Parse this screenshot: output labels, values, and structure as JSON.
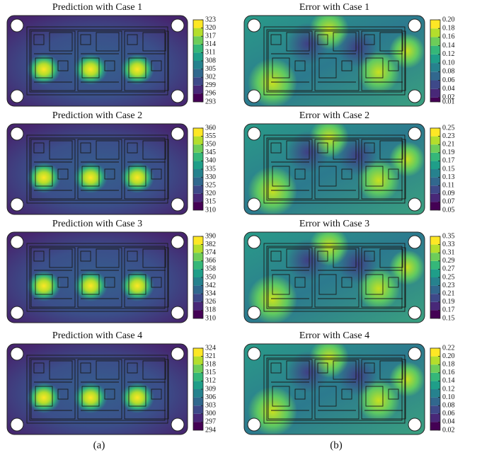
{
  "chart_data": [
    {
      "type": "contour",
      "title": "Prediction with Case 1",
      "clim": [
        293,
        323
      ],
      "colorbar_ticks": [
        293,
        296,
        299,
        302,
        305,
        308,
        311,
        314,
        317,
        320,
        323
      ]
    },
    {
      "type": "contour",
      "title": "Error with  Case 1",
      "clim": [
        0.01,
        0.2
      ],
      "colorbar_ticks": [
        {
          "value": 0.01,
          "label": "0.01"
        },
        {
          "value": 0.02,
          "label": "0.02"
        },
        {
          "value": 0.04,
          "label": "0.04"
        },
        {
          "value": 0.06,
          "label": "0.06"
        },
        {
          "value": 0.08,
          "label": "0.08"
        },
        {
          "value": 0.1,
          "label": "0.10"
        },
        {
          "value": 0.12,
          "label": "0.12"
        },
        {
          "value": 0.14,
          "label": "0.14"
        },
        {
          "value": 0.16,
          "label": "0.16"
        },
        {
          "value": 0.18,
          "label": "0.18"
        },
        {
          "value": 0.2,
          "label": "0.20"
        }
      ]
    },
    {
      "type": "contour",
      "title": "Prediction with Case 2",
      "clim": [
        310,
        360
      ],
      "colorbar_ticks": [
        310,
        315,
        320,
        325,
        330,
        335,
        340,
        345,
        350,
        355,
        360
      ]
    },
    {
      "type": "contour",
      "title": "Error with  Case 2",
      "clim": [
        0.05,
        0.25
      ],
      "colorbar_ticks": [
        {
          "value": 0.05,
          "label": "0.05"
        },
        {
          "value": 0.07,
          "label": "0.07"
        },
        {
          "value": 0.09,
          "label": "0.09"
        },
        {
          "value": 0.11,
          "label": "0.11"
        },
        {
          "value": 0.13,
          "label": "0.13"
        },
        {
          "value": 0.15,
          "label": "0.15"
        },
        {
          "value": 0.17,
          "label": "0.17"
        },
        {
          "value": 0.19,
          "label": "0.19"
        },
        {
          "value": 0.21,
          "label": "0.21"
        },
        {
          "value": 0.23,
          "label": "0.23"
        },
        {
          "value": 0.25,
          "label": "0.25"
        }
      ]
    },
    {
      "type": "contour",
      "title": "Prediction with Case 3",
      "clim": [
        310,
        390
      ],
      "colorbar_ticks": [
        310,
        318,
        326,
        334,
        342,
        350,
        358,
        366,
        374,
        382,
        390
      ]
    },
    {
      "type": "contour",
      "title": "Error with  Case 3",
      "clim": [
        0.15,
        0.35
      ],
      "colorbar_ticks": [
        {
          "value": 0.15,
          "label": "0.15"
        },
        {
          "value": 0.17,
          "label": "0.17"
        },
        {
          "value": 0.19,
          "label": "0.19"
        },
        {
          "value": 0.21,
          "label": "0.21"
        },
        {
          "value": 0.23,
          "label": "0.23"
        },
        {
          "value": 0.25,
          "label": "0.25"
        },
        {
          "value": 0.27,
          "label": "0.27"
        },
        {
          "value": 0.29,
          "label": "0.29"
        },
        {
          "value": 0.31,
          "label": "0.31"
        },
        {
          "value": 0.33,
          "label": "0.33"
        },
        {
          "value": 0.35,
          "label": "0.35"
        }
      ]
    },
    {
      "type": "contour",
      "title": "Prediction with Case 4",
      "clim": [
        294,
        324
      ],
      "colorbar_ticks": [
        294,
        297,
        300,
        303,
        306,
        309,
        312,
        315,
        318,
        321,
        324
      ]
    },
    {
      "type": "contour",
      "title": "Error with  Case 4",
      "clim": [
        0.02,
        0.22
      ],
      "colorbar_ticks": [
        {
          "value": 0.02,
          "label": "0.02"
        },
        {
          "value": 0.04,
          "label": "0.04"
        },
        {
          "value": 0.06,
          "label": "0.06"
        },
        {
          "value": 0.08,
          "label": "0.08"
        },
        {
          "value": 0.1,
          "label": "0.10"
        },
        {
          "value": 0.12,
          "label": "0.12"
        },
        {
          "value": 0.14,
          "label": "0.14"
        },
        {
          "value": 0.16,
          "label": "0.16"
        },
        {
          "value": 0.18,
          "label": "0.18"
        },
        {
          "value": 0.2,
          "label": "0.20"
        },
        {
          "value": 0.22,
          "label": "0.22"
        }
      ]
    }
  ],
  "panel_labels": [
    "(a)",
    "(b)"
  ]
}
